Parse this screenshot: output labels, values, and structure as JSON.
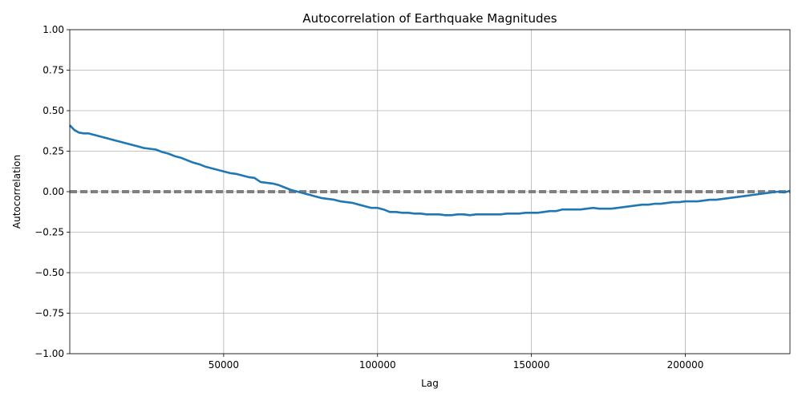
{
  "chart_data": {
    "type": "line",
    "title": "Autocorrelation of Earthquake Magnitudes",
    "xlabel": "Lag",
    "ylabel": "Autocorrelation",
    "xlim": [
      1,
      234000
    ],
    "ylim": [
      -1.0,
      1.0
    ],
    "grid": true,
    "x_ticks": [
      50000,
      100000,
      150000,
      200000
    ],
    "x_tick_labels": [
      "50000",
      "100000",
      "150000",
      "200000"
    ],
    "y_ticks": [
      1.0,
      0.75,
      0.5,
      0.25,
      0.0,
      -0.25,
      -0.5,
      -0.75,
      -1.0
    ],
    "y_tick_labels": [
      "1.00",
      "0.75",
      "0.50",
      "0.25",
      "0.00",
      "−0.25",
      "−0.50",
      "−0.75",
      "−1.00"
    ],
    "line_color": "#1f77b4",
    "reference_color": "#808080",
    "reference_lines": [
      {
        "y": 0.0,
        "style": "dashed"
      },
      {
        "y": 0.0045,
        "style": "dashed"
      },
      {
        "y": -0.0045,
        "style": "dashed"
      }
    ],
    "series": [
      {
        "x": [
          1,
          500,
          1500,
          3000,
          4500,
          6000,
          8000,
          10000,
          12000,
          14000,
          16000,
          18000,
          20000,
          22000,
          24000,
          26000,
          28000,
          30000,
          32000,
          34000,
          36000,
          38000,
          40000,
          42000,
          44000,
          46000,
          48000,
          50000,
          52000,
          54000,
          56000,
          58000,
          60000,
          62000,
          64000,
          66000,
          68000,
          70000,
          72000,
          74000,
          76000,
          78000,
          80000,
          82000,
          84000,
          86000,
          88000,
          90000,
          92000,
          94000,
          96000,
          98000,
          100000,
          102000,
          104000,
          106000,
          108000,
          110000,
          112000,
          114000,
          116000,
          118000,
          120000,
          122000,
          124000,
          126000,
          128000,
          130000,
          132000,
          134000,
          136000,
          138000,
          140000,
          142000,
          144000,
          146000,
          148000,
          150000,
          152000,
          154000,
          156000,
          158000,
          160000,
          162000,
          164000,
          166000,
          168000,
          170000,
          172000,
          174000,
          176000,
          178000,
          180000,
          182000,
          184000,
          186000,
          188000,
          190000,
          192000,
          194000,
          196000,
          198000,
          200000,
          202000,
          204000,
          206000,
          208000,
          210000,
          212000,
          214000,
          216000,
          218000,
          220000,
          222000,
          224000,
          226000,
          228000,
          230000,
          232000,
          234000
        ],
        "y": [
          0.41,
          0.4,
          0.38,
          0.365,
          0.36,
          0.36,
          0.35,
          0.34,
          0.33,
          0.32,
          0.31,
          0.3,
          0.29,
          0.28,
          0.27,
          0.265,
          0.26,
          0.245,
          0.235,
          0.22,
          0.21,
          0.195,
          0.18,
          0.17,
          0.155,
          0.145,
          0.135,
          0.125,
          0.115,
          0.11,
          0.1,
          0.09,
          0.085,
          0.06,
          0.055,
          0.05,
          0.04,
          0.025,
          0.01,
          0.0,
          -0.01,
          -0.02,
          -0.03,
          -0.04,
          -0.045,
          -0.05,
          -0.06,
          -0.065,
          -0.07,
          -0.08,
          -0.09,
          -0.1,
          -0.1,
          -0.11,
          -0.125,
          -0.125,
          -0.13,
          -0.13,
          -0.135,
          -0.135,
          -0.14,
          -0.14,
          -0.14,
          -0.145,
          -0.145,
          -0.14,
          -0.14,
          -0.145,
          -0.14,
          -0.14,
          -0.14,
          -0.14,
          -0.14,
          -0.135,
          -0.135,
          -0.135,
          -0.13,
          -0.13,
          -0.13,
          -0.125,
          -0.12,
          -0.12,
          -0.11,
          -0.11,
          -0.11,
          -0.11,
          -0.105,
          -0.1,
          -0.105,
          -0.105,
          -0.105,
          -0.1,
          -0.095,
          -0.09,
          -0.085,
          -0.08,
          -0.08,
          -0.075,
          -0.075,
          -0.07,
          -0.065,
          -0.065,
          -0.06,
          -0.06,
          -0.06,
          -0.055,
          -0.05,
          -0.05,
          -0.045,
          -0.04,
          -0.035,
          -0.03,
          -0.025,
          -0.02,
          -0.015,
          -0.01,
          -0.005,
          0.0,
          -0.005,
          0.005
        ]
      }
    ]
  }
}
